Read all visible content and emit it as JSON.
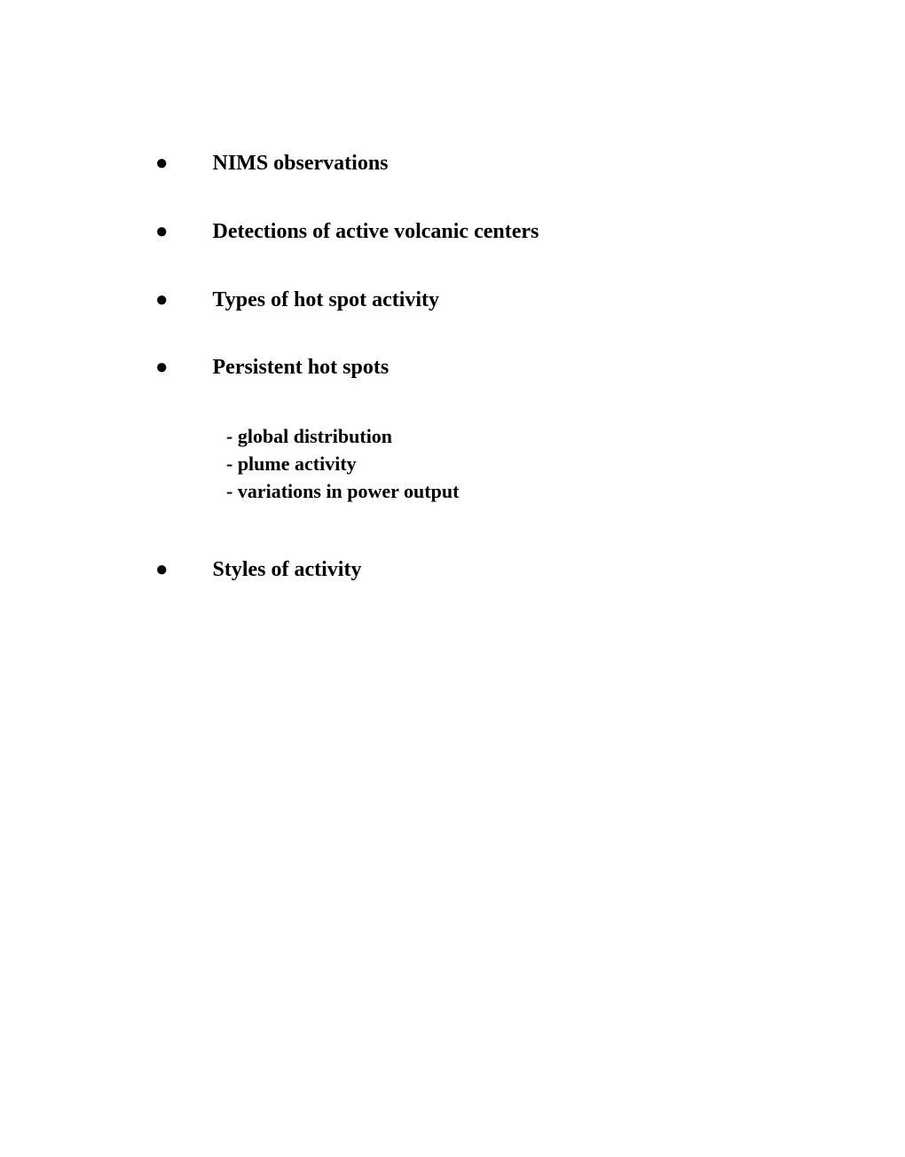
{
  "items": [
    {
      "text": "NIMS observations"
    },
    {
      "text": "Detections of active volcanic centers"
    },
    {
      "text": "Types of hot spot activity"
    },
    {
      "text": "Persistent hot spots",
      "subitems": [
        "- global distribution",
        "- plume activity",
        "- variations in power output"
      ]
    },
    {
      "text": "Styles of activity"
    }
  ],
  "typography": {
    "font_family": "Times New Roman",
    "bullet_fontsize": 24,
    "subitem_fontsize": 22,
    "font_weight": "bold",
    "text_color": "#000000",
    "background_color": "#ffffff"
  }
}
